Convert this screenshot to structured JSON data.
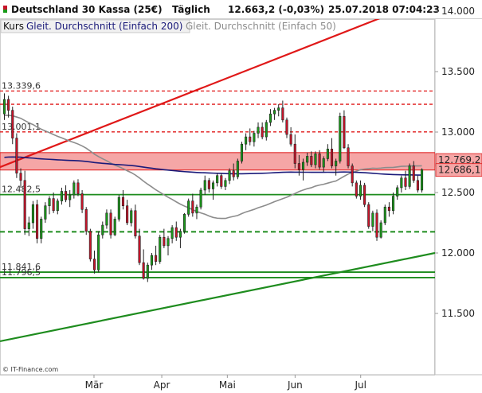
{
  "header": {
    "instrument": "Deutschland 30 Kassa (25€)",
    "interval": "Täglich",
    "last": "12.663,2 (-0,03%)",
    "timestamp": "25.07.2018 07:04:23"
  },
  "legend": {
    "kurs": "Kurs",
    "sma200": "Gleit. Durchschnitt (Einfach 200)",
    "sma50": "Gleit. Durchschnitt (Einfach 50)"
  },
  "source": "© IT-Finance.com",
  "colors": {
    "up": "#1a9a1a",
    "down": "#c8142a",
    "sma200": "#1a1a7a",
    "sma50": "#8c8c8c",
    "resistance": "#e01818",
    "support": "#1e8c1e",
    "zone": "#f5a6a6",
    "price_tag_bg": "#f5a6a6"
  },
  "chart_data": {
    "type": "candlestick",
    "ylim": [
      11370,
      14200
    ],
    "y_ticks": [
      {
        "value": 11500,
        "label": "11.500"
      },
      {
        "value": 12000,
        "label": "12.000"
      },
      {
        "value": 12500,
        "label": "12.500"
      },
      {
        "value": 13000,
        "label": "13.000"
      },
      {
        "value": 13500,
        "label": "13.500"
      },
      {
        "value": 14000,
        "label": "14.000"
      }
    ],
    "x_months": [
      {
        "label": "Mär",
        "day": 43
      },
      {
        "label": "Apr",
        "day": 74
      },
      {
        "label": "Mai",
        "day": 104
      },
      {
        "label": "Jun",
        "day": 135
      },
      {
        "label": "Jul",
        "day": 165
      }
    ],
    "x_range": [
      0,
      199
    ],
    "price_tags": [
      {
        "label": "12.769,2",
        "value": 12769.2
      },
      {
        "label": "12.686,1",
        "value": 12686.1
      }
    ],
    "zone": {
      "low": 12686.1,
      "high": 12830
    },
    "levels": [
      {
        "value": 13339.6,
        "label": "13.339,6",
        "style": "red-dashed"
      },
      {
        "value": 13230,
        "label": "",
        "style": "red-dashed"
      },
      {
        "value": 13001.1,
        "label": "13.001,1",
        "style": "red-dashed"
      },
      {
        "value": 12482.5,
        "label": "12.482,5",
        "style": "green-solid"
      },
      {
        "value": 12175,
        "label": "",
        "style": "green-dashed"
      },
      {
        "value": 11841.6,
        "label": "11.841,6",
        "style": "green-solid"
      },
      {
        "value": 11796.5,
        "label": "11.796,5",
        "style": "green-solid"
      }
    ],
    "trendlines": [
      {
        "name": "resistance",
        "from": [
          0,
          12710
        ],
        "to": [
          199,
          14120
        ]
      },
      {
        "name": "support",
        "from": [
          0,
          11270
        ],
        "to": [
          199,
          12000
        ]
      }
    ],
    "candles": [
      [
        13150,
        13320,
        13100,
        13270
      ],
      [
        13270,
        13300,
        13120,
        13180
      ],
      [
        13180,
        13210,
        12900,
        12950
      ],
      [
        12950,
        12990,
        12620,
        12660
      ],
      [
        12660,
        12700,
        12540,
        12600
      ],
      [
        12600,
        12680,
        12150,
        12200
      ],
      [
        12200,
        12300,
        12140,
        12250
      ],
      [
        12250,
        12430,
        12200,
        12400
      ],
      [
        12400,
        12440,
        12080,
        12120
      ],
      [
        12120,
        12300,
        12080,
        12280
      ],
      [
        12280,
        12420,
        12250,
        12390
      ],
      [
        12390,
        12470,
        12320,
        12450
      ],
      [
        12450,
        12500,
        12330,
        12350
      ],
      [
        12350,
        12450,
        12320,
        12430
      ],
      [
        12430,
        12540,
        12400,
        12510
      ],
      [
        12510,
        12560,
        12420,
        12440
      ],
      [
        12440,
        12520,
        12380,
        12480
      ],
      [
        12480,
        12600,
        12450,
        12580
      ],
      [
        12580,
        12610,
        12470,
        12490
      ],
      [
        12490,
        12520,
        12330,
        12360
      ],
      [
        12360,
        12380,
        12150,
        12180
      ],
      [
        12180,
        12200,
        11930,
        11950
      ],
      [
        11950,
        12020,
        11830,
        11860
      ],
      [
        11860,
        12180,
        11840,
        12150
      ],
      [
        12150,
        12260,
        12120,
        12230
      ],
      [
        12230,
        12360,
        12200,
        12330
      ],
      [
        12330,
        12360,
        12120,
        12150
      ],
      [
        12150,
        12300,
        12140,
        12280
      ],
      [
        12280,
        12480,
        12260,
        12460
      ],
      [
        12460,
        12520,
        12360,
        12390
      ],
      [
        12390,
        12440,
        12230,
        12250
      ],
      [
        12250,
        12370,
        12220,
        12350
      ],
      [
        12350,
        12400,
        12120,
        12140
      ],
      [
        12140,
        12200,
        11900,
        11920
      ],
      [
        11920,
        12030,
        11780,
        11790
      ],
      [
        11790,
        11920,
        11760,
        11900
      ],
      [
        11900,
        12000,
        11860,
        11980
      ],
      [
        11980,
        12060,
        11900,
        11930
      ],
      [
        11930,
        12150,
        11910,
        12130
      ],
      [
        12130,
        12200,
        12040,
        12060
      ],
      [
        12060,
        12140,
        11980,
        12120
      ],
      [
        12120,
        12230,
        12080,
        12210
      ],
      [
        12210,
        12260,
        12100,
        12130
      ],
      [
        12130,
        12200,
        12040,
        12180
      ],
      [
        12180,
        12330,
        12160,
        12320
      ],
      [
        12320,
        12450,
        12300,
        12430
      ],
      [
        12430,
        12490,
        12300,
        12330
      ],
      [
        12330,
        12400,
        12280,
        12380
      ],
      [
        12380,
        12540,
        12360,
        12520
      ],
      [
        12520,
        12640,
        12480,
        12600
      ],
      [
        12600,
        12620,
        12500,
        12530
      ],
      [
        12530,
        12600,
        12440,
        12580
      ],
      [
        12580,
        12660,
        12550,
        12640
      ],
      [
        12640,
        12660,
        12530,
        12550
      ],
      [
        12550,
        12620,
        12520,
        12600
      ],
      [
        12600,
        12700,
        12570,
        12680
      ],
      [
        12680,
        12740,
        12600,
        12630
      ],
      [
        12630,
        12780,
        12610,
        12760
      ],
      [
        12760,
        12920,
        12740,
        12900
      ],
      [
        12900,
        12990,
        12850,
        12960
      ],
      [
        12960,
        13030,
        12890,
        12920
      ],
      [
        12920,
        13010,
        12880,
        12990
      ],
      [
        12990,
        13080,
        12950,
        13040
      ],
      [
        13040,
        13080,
        12940,
        12960
      ],
      [
        12960,
        13100,
        12930,
        13080
      ],
      [
        13080,
        13190,
        13050,
        13150
      ],
      [
        13150,
        13200,
        13100,
        13180
      ],
      [
        13180,
        13230,
        13130,
        13200
      ],
      [
        13200,
        13260,
        13080,
        13100
      ],
      [
        13100,
        13120,
        12950,
        12980
      ],
      [
        12980,
        13040,
        12880,
        12900
      ],
      [
        12900,
        12980,
        12700,
        12740
      ],
      [
        12740,
        12810,
        12640,
        12690
      ],
      [
        12690,
        12780,
        12600,
        12750
      ],
      [
        12750,
        12830,
        12720,
        12800
      ],
      [
        12800,
        12840,
        12710,
        12730
      ],
      [
        12730,
        12840,
        12700,
        12820
      ],
      [
        12820,
        12850,
        12690,
        12710
      ],
      [
        12710,
        12800,
        12670,
        12780
      ],
      [
        12780,
        12900,
        12760,
        12860
      ],
      [
        12860,
        12950,
        12700,
        12720
      ],
      [
        12720,
        12780,
        12640,
        12760
      ],
      [
        12760,
        13160,
        12740,
        13130
      ],
      [
        13130,
        13180,
        12860,
        12870
      ],
      [
        12870,
        12900,
        12700,
        12720
      ],
      [
        12720,
        12740,
        12550,
        12580
      ],
      [
        12580,
        12600,
        12450,
        12470
      ],
      [
        12470,
        12600,
        12440,
        12560
      ],
      [
        12560,
        12580,
        12380,
        12400
      ],
      [
        12400,
        12420,
        12200,
        12220
      ],
      [
        12220,
        12350,
        12180,
        12330
      ],
      [
        12330,
        12360,
        12100,
        12130
      ],
      [
        12130,
        12270,
        12120,
        12250
      ],
      [
        12250,
        12400,
        12230,
        12380
      ],
      [
        12380,
        12420,
        12300,
        12350
      ],
      [
        12350,
        12500,
        12320,
        12470
      ],
      [
        12470,
        12560,
        12440,
        12540
      ],
      [
        12540,
        12640,
        12500,
        12620
      ],
      [
        12620,
        12680,
        12520,
        12550
      ],
      [
        12550,
        12740,
        12530,
        12720
      ],
      [
        12720,
        12760,
        12580,
        12600
      ],
      [
        12600,
        12640,
        12500,
        12520
      ],
      [
        12520,
        12700,
        12500,
        12690
      ]
    ]
  }
}
